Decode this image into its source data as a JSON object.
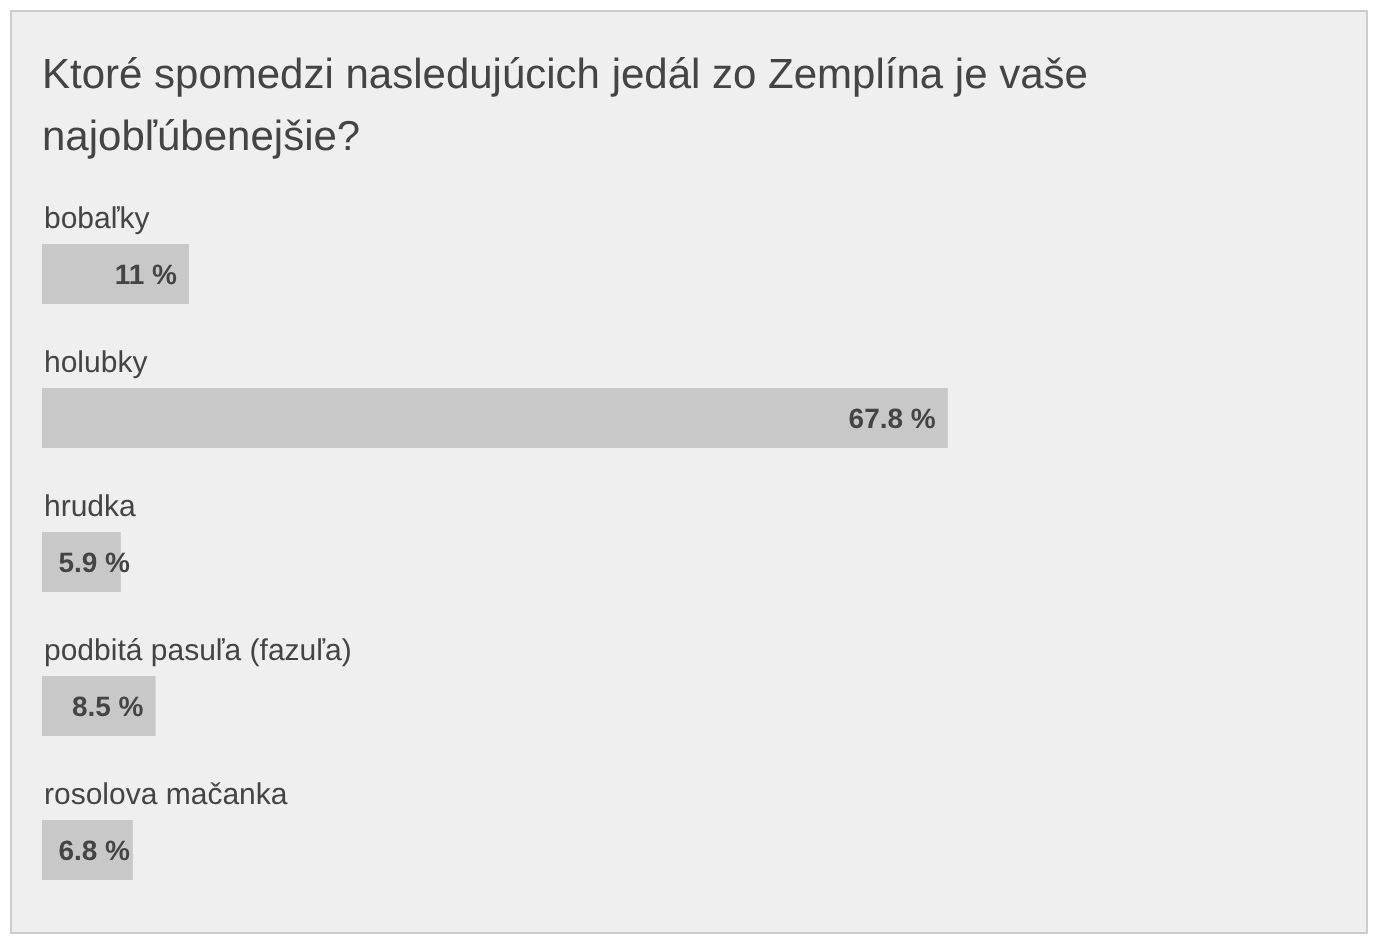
{
  "chart_data": {
    "type": "bar",
    "orientation": "horizontal",
    "title": "Ktoré spomedzi nasledujúcich jedál zo Zemplína je vaše najobľúbenejšie?",
    "categories": [
      "bobaľky",
      "holubky",
      "hrudka",
      "podbitá pasuľa (fazuľa)",
      "rosolova mačanka"
    ],
    "values": [
      11,
      67.8,
      5.9,
      8.5,
      6.8
    ],
    "value_labels": [
      "11 %",
      "67.8 %",
      "5.9 %",
      "8.5 %",
      "6.8 %"
    ],
    "color": "#c8c8c8"
  }
}
